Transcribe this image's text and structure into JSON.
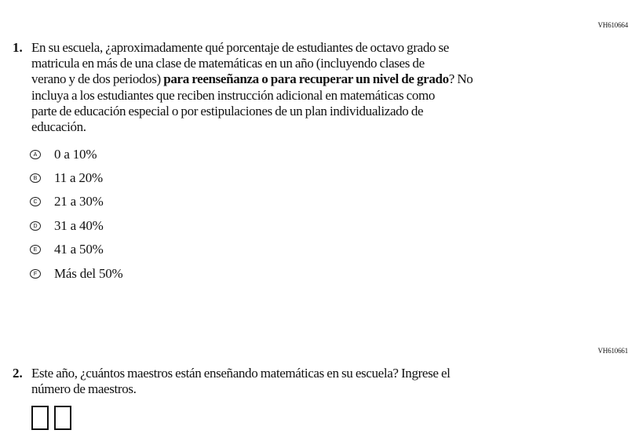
{
  "q1": {
    "id": "VH610664",
    "number": "1.",
    "lines": [
      {
        "text": "En su escuela, ¿aproximadamente qué porcentaje de estudiantes de octavo grado se"
      },
      {
        "text": "matricula en más de una clase de matemáticas en un año (incluyendo clases de"
      },
      {
        "pre": "verano y de dos periodos) ",
        "bold": "para reenseñanza o para recuperar un nivel de grado",
        "post": "? No"
      },
      {
        "text": "incluya a los estudiantes que reciben instrucción adicional en matemáticas como"
      },
      {
        "text": "parte de educación especial o por estipulaciones de un plan individualizado de"
      },
      {
        "text": "educación."
      }
    ],
    "options": [
      {
        "letter": "A",
        "label": "0 a 10%"
      },
      {
        "letter": "B",
        "label": "11 a 20%"
      },
      {
        "letter": "C",
        "label": "21 a 30%"
      },
      {
        "letter": "D",
        "label": "31 a 40%"
      },
      {
        "letter": "E",
        "label": "41 a 50%"
      },
      {
        "letter": "F",
        "label": "Más del 50%"
      }
    ]
  },
  "q2": {
    "id": "VH610661",
    "number": "2.",
    "lines": [
      "Este año, ¿cuántos maestros están enseñando matemáticas en su escuela? Ingrese el",
      "número de maestros."
    ],
    "digits": [
      "",
      ""
    ]
  }
}
